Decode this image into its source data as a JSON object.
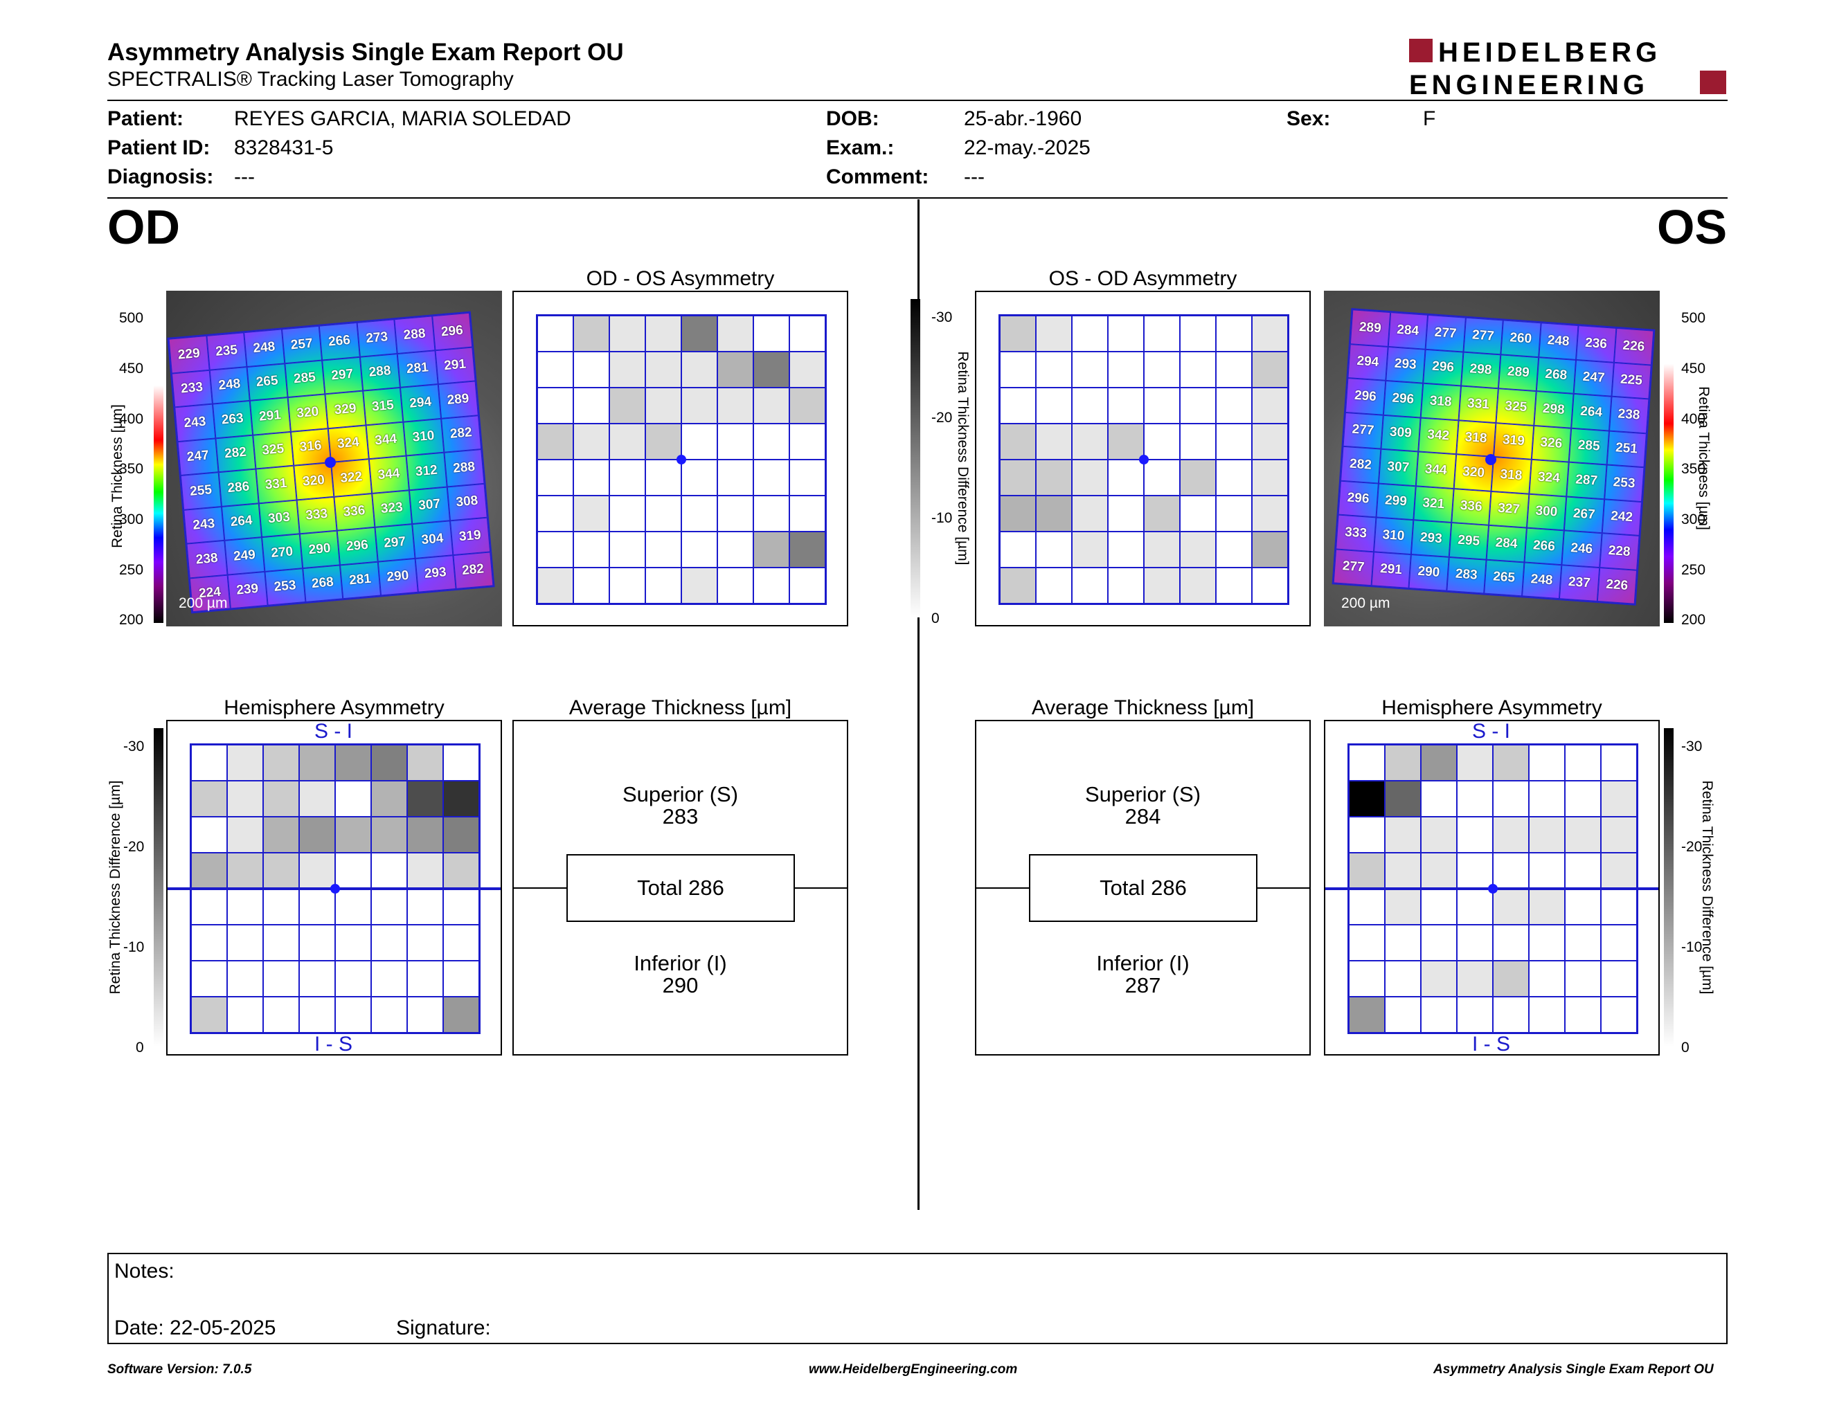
{
  "header": {
    "title": "Asymmetry Analysis Single Exam Report OU",
    "subtitle": "SPECTRALIS® Tracking Laser Tomography",
    "logo_line1": "HEIDELBERG",
    "logo_line2": "ENGINEERING"
  },
  "patient": {
    "patient_label": "Patient:",
    "patient_value": "REYES GARCIA, MARIA SOLEDAD",
    "id_label": "Patient ID:",
    "id_value": "8328431-5",
    "diagnosis_label": "Diagnosis:",
    "diagnosis_value": "---",
    "dob_label": "DOB:",
    "dob_value": "25-abr.-1960",
    "exam_label": "Exam.:",
    "exam_value": "22-may.-2025",
    "comment_label": "Comment:",
    "comment_value": "---",
    "sex_label": "Sex:",
    "sex_value": "F"
  },
  "od": {
    "eye": "OD",
    "asym_title": "OD - OS Asymmetry",
    "hemi_title": "Hemisphere Asymmetry",
    "hemi_top": "S - I",
    "hemi_bottom": "I - S",
    "avg_title": "Average Thickness [µm]",
    "superior_label": "Superior (S)",
    "superior_value": "283",
    "total": "Total 286",
    "inferior_label": "Inferior (I)",
    "inferior_value": "290",
    "scale_bar": "200 µm",
    "thickness_grid": [
      [
        229,
        235,
        248,
        257,
        266,
        273,
        288,
        296
      ],
      [
        233,
        248,
        265,
        285,
        297,
        288,
        281,
        291
      ],
      [
        243,
        263,
        291,
        320,
        329,
        315,
        294,
        289
      ],
      [
        247,
        282,
        325,
        316,
        324,
        344,
        310,
        282
      ],
      [
        255,
        286,
        331,
        320,
        322,
        344,
        312,
        288
      ],
      [
        243,
        264,
        303,
        333,
        336,
        323,
        307,
        308
      ],
      [
        238,
        249,
        270,
        290,
        296,
        297,
        304,
        319
      ],
      [
        224,
        239,
        253,
        268,
        281,
        290,
        293,
        282
      ]
    ],
    "asym_grid": [
      [
        0,
        2,
        1,
        1,
        5,
        1,
        0,
        0
      ],
      [
        0,
        0,
        1,
        1,
        1,
        3,
        5,
        1
      ],
      [
        0,
        0,
        2,
        1,
        1,
        1,
        1,
        2
      ],
      [
        2,
        1,
        1,
        2,
        0,
        0,
        0,
        0
      ],
      [
        0,
        0,
        0,
        0,
        0,
        0,
        0,
        0
      ],
      [
        0,
        1,
        0,
        0,
        0,
        0,
        0,
        0
      ],
      [
        0,
        0,
        0,
        0,
        0,
        0,
        3,
        5
      ],
      [
        1,
        0,
        0,
        0,
        1,
        0,
        0,
        0
      ]
    ],
    "hemi_grid": [
      [
        0,
        1,
        2,
        3,
        4,
        5,
        2,
        0
      ],
      [
        2,
        1,
        2,
        1,
        0,
        3,
        7,
        8
      ],
      [
        0,
        1,
        3,
        4,
        3,
        3,
        4,
        5
      ],
      [
        3,
        2,
        2,
        1,
        0,
        0,
        1,
        2
      ],
      [
        0,
        0,
        0,
        0,
        0,
        0,
        0,
        0
      ],
      [
        0,
        0,
        0,
        0,
        0,
        0,
        0,
        0
      ],
      [
        0,
        0,
        0,
        0,
        0,
        0,
        0,
        0
      ],
      [
        2,
        0,
        0,
        0,
        0,
        0,
        0,
        4
      ]
    ]
  },
  "os": {
    "eye": "OS",
    "asym_title": "OS - OD Asymmetry",
    "hemi_title": "Hemisphere Asymmetry",
    "hemi_top": "S - I",
    "hemi_bottom": "I - S",
    "avg_title": "Average Thickness [µm]",
    "superior_label": "Superior (S)",
    "superior_value": "284",
    "total": "Total 286",
    "inferior_label": "Inferior (I)",
    "inferior_value": "287",
    "scale_bar": "200 µm",
    "thickness_grid": [
      [
        289,
        284,
        277,
        277,
        260,
        248,
        236,
        226
      ],
      [
        294,
        293,
        296,
        298,
        289,
        268,
        247,
        225
      ],
      [
        296,
        296,
        318,
        331,
        325,
        298,
        264,
        238
      ],
      [
        277,
        309,
        342,
        318,
        319,
        326,
        285,
        251
      ],
      [
        282,
        307,
        344,
        320,
        318,
        324,
        287,
        253
      ],
      [
        296,
        299,
        321,
        336,
        327,
        300,
        267,
        242
      ],
      [
        333,
        310,
        293,
        295,
        284,
        266,
        246,
        228
      ],
      [
        277,
        291,
        290,
        283,
        265,
        248,
        237,
        226
      ]
    ],
    "asym_grid": [
      [
        2,
        1,
        0,
        0,
        0,
        0,
        0,
        1
      ],
      [
        0,
        0,
        0,
        0,
        0,
        0,
        0,
        2
      ],
      [
        0,
        0,
        0,
        0,
        0,
        0,
        0,
        1
      ],
      [
        2,
        1,
        1,
        2,
        0,
        0,
        0,
        1
      ],
      [
        2,
        2,
        1,
        0,
        0,
        2,
        0,
        1
      ],
      [
        3,
        3,
        1,
        0,
        2,
        0,
        0,
        1
      ],
      [
        0,
        0,
        1,
        0,
        1,
        1,
        0,
        3
      ],
      [
        2,
        0,
        0,
        0,
        1,
        1,
        0,
        0
      ]
    ],
    "hemi_grid": [
      [
        0,
        2,
        4,
        1,
        2,
        0,
        0,
        0
      ],
      [
        10,
        6,
        0,
        0,
        0,
        0,
        0,
        1
      ],
      [
        0,
        1,
        1,
        0,
        1,
        1,
        1,
        1
      ],
      [
        2,
        1,
        1,
        0,
        0,
        0,
        0,
        1
      ],
      [
        0,
        1,
        0,
        0,
        1,
        1,
        0,
        0
      ],
      [
        0,
        0,
        0,
        0,
        0,
        0,
        0,
        0
      ],
      [
        0,
        0,
        1,
        1,
        2,
        0,
        0,
        0
      ],
      [
        4,
        0,
        0,
        0,
        0,
        0,
        0,
        0
      ]
    ]
  },
  "scales": {
    "thickness_label": "Retina Thickness [µm]",
    "thickness_label_od": "Retina  Thickness [µm]",
    "thickness_ticks": [
      "500",
      "450",
      "400",
      "350",
      "300",
      "250",
      "200"
    ],
    "diff_label": "Retina Thickness Difference [µm]",
    "diff_ticks": [
      "-30",
      "-20",
      "-10",
      "0"
    ]
  },
  "notes": {
    "notes_label": "Notes:",
    "date_label": "Date: 22-05-2025",
    "signature_label": "Signature:"
  },
  "footer": {
    "software": "Software Version: 7.0.5",
    "website": "www.HeidelbergEngineering.com",
    "report": "Asymmetry Analysis Single Exam Report OU"
  },
  "colors": {
    "grid_blue": "#1a1acc",
    "logo_red": "#9b1b30"
  }
}
